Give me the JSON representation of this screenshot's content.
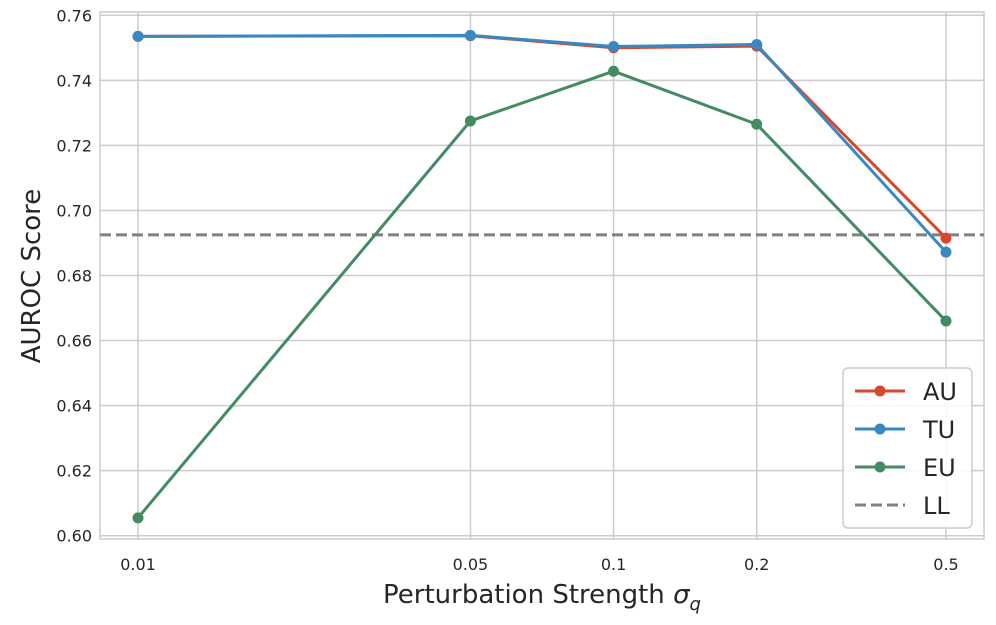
{
  "chart_data": {
    "type": "line",
    "x_scale": "log",
    "categories": [
      "0.01",
      "0.05",
      "0.1",
      "0.2",
      "0.5"
    ],
    "x": [
      0.01,
      0.05,
      0.1,
      0.2,
      0.5
    ],
    "xlabel": "Perturbation Strength",
    "xlabel_symbol": "σ",
    "xlabel_subscript": "q",
    "ylabel": "AUROC Score",
    "ylim": [
      0.599,
      0.761
    ],
    "yticks": [
      0.6,
      0.62,
      0.64,
      0.66,
      0.68,
      0.7,
      0.72,
      0.74,
      0.76
    ],
    "ytick_labels": [
      "0.60",
      "0.62",
      "0.64",
      "0.66",
      "0.68",
      "0.70",
      "0.72",
      "0.74",
      "0.76"
    ],
    "grid": true,
    "legend_position": "bottom-right",
    "series": [
      {
        "name": "AU",
        "color": "#d9472b",
        "values": [
          0.7535,
          0.7537,
          0.75,
          0.7505,
          0.6915
        ]
      },
      {
        "name": "TU",
        "color": "#3a88c0",
        "values": [
          0.7535,
          0.7538,
          0.7504,
          0.751,
          0.6872
        ]
      },
      {
        "name": "EU",
        "color": "#448a62",
        "values": [
          0.6055,
          0.7275,
          0.7428,
          0.7265,
          0.666
        ]
      }
    ],
    "reference_lines": [
      {
        "name": "LL",
        "color": "#808080",
        "style": "dashed",
        "value": 0.6925
      }
    ]
  }
}
